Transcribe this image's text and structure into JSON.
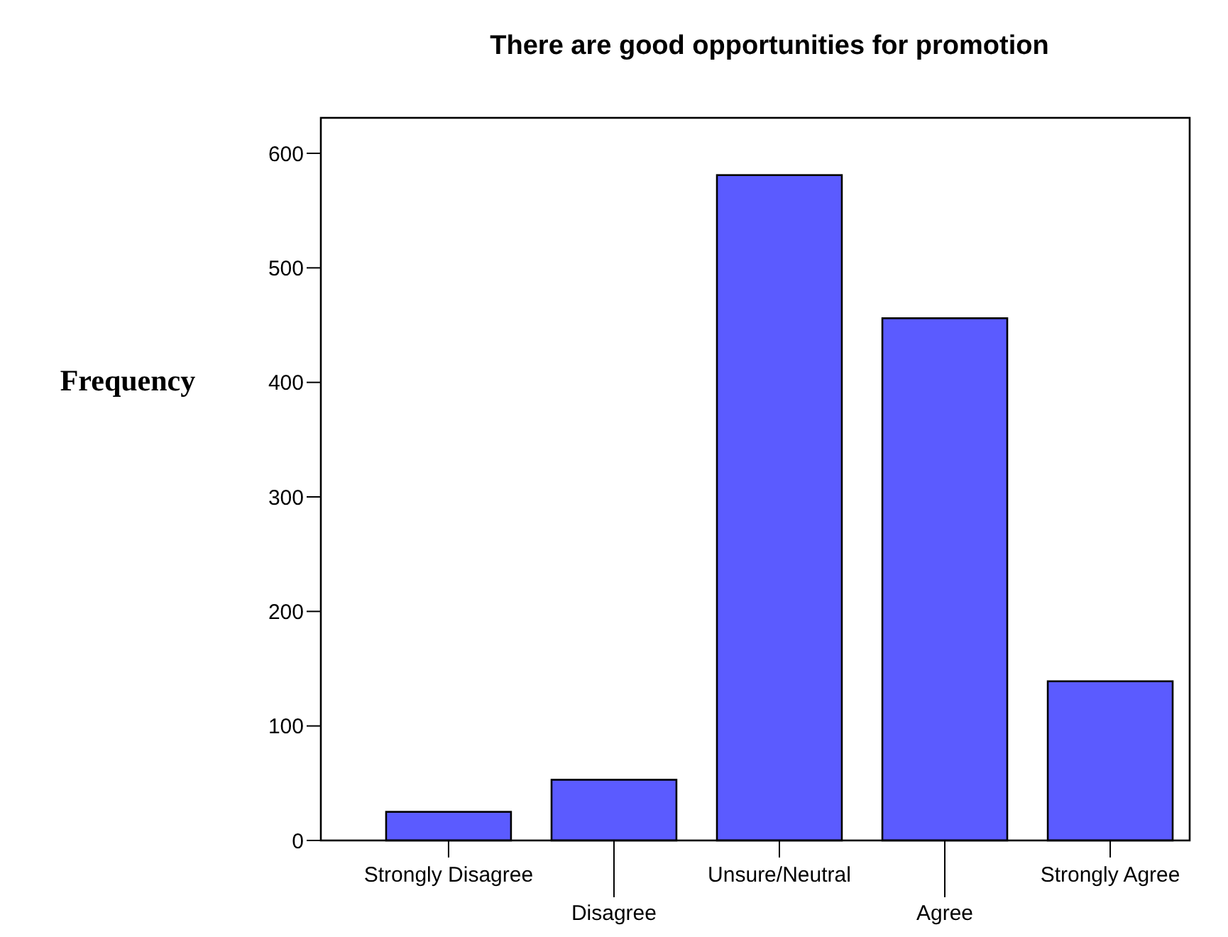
{
  "chart_data": {
    "type": "bar",
    "title": "There are good opportunities for promotion",
    "ylabel": "Frequency",
    "categories": [
      "Strongly Disagree",
      "Disagree",
      "Unsure/Neutral",
      "Agree",
      "Strongly Agree"
    ],
    "values": [
      25,
      53,
      581,
      456,
      139
    ],
    "color": "#5b5bff",
    "ylim": [
      0,
      631
    ],
    "yticks": [
      0,
      100,
      200,
      300,
      400,
      500,
      600
    ],
    "grid": false
  }
}
